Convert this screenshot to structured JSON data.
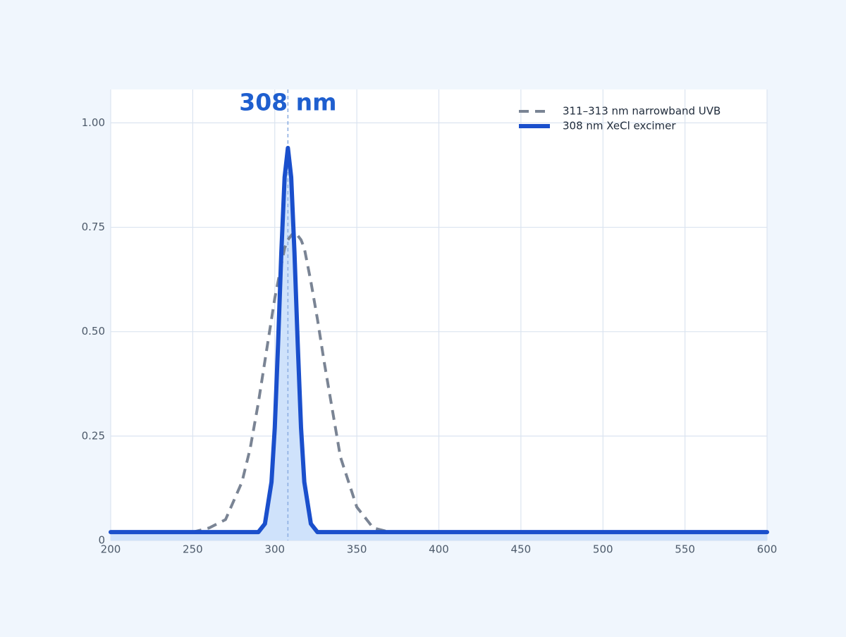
{
  "chart_data": {
    "type": "line",
    "x": [
      200,
      250,
      260,
      270,
      280,
      285,
      290,
      294,
      298,
      300,
      302,
      304,
      306,
      308,
      310,
      312,
      314,
      316,
      318,
      322,
      326,
      330,
      340,
      350,
      360,
      370,
      380,
      600
    ],
    "series": [
      {
        "name": "311–313 nm narrowband UVB",
        "color": "#7a8494",
        "dashed": true,
        "values": [
          0.02,
          0.02,
          0.03,
          0.05,
          0.14,
          0.22,
          0.33,
          0.43,
          0.53,
          0.58,
          0.62,
          0.66,
          0.7,
          0.72,
          0.73,
          0.74,
          0.73,
          0.72,
          0.7,
          0.62,
          0.53,
          0.43,
          0.2,
          0.08,
          0.03,
          0.02,
          0.02,
          0.02
        ]
      },
      {
        "name": "308 nm XeCl excimer",
        "color": "#1a4fcc",
        "dashed": false,
        "fill": "#cfe2fb",
        "values": [
          0.02,
          0.02,
          0.02,
          0.02,
          0.02,
          0.02,
          0.02,
          0.04,
          0.14,
          0.27,
          0.47,
          0.69,
          0.87,
          0.94,
          0.87,
          0.69,
          0.47,
          0.27,
          0.14,
          0.04,
          0.02,
          0.02,
          0.02,
          0.02,
          0.02,
          0.02,
          0.02,
          0.02
        ]
      }
    ],
    "annotation": {
      "text": "308 nm",
      "x": 308,
      "color": "#1f5fcf"
    },
    "xlim": [
      200,
      600
    ],
    "ylim": [
      0,
      1.08
    ],
    "xticks": [
      200,
      250,
      300,
      350,
      400,
      450,
      500,
      550,
      600
    ],
    "yticks": [
      0,
      {
        "value": 0.25,
        "label": "0.25"
      },
      {
        "value": 0.5,
        "label": "0.50"
      },
      {
        "value": 0.75,
        "label": "0.75"
      },
      {
        "value": 1,
        "label": "1.00"
      }
    ],
    "grid": true,
    "legend": "top-right"
  }
}
